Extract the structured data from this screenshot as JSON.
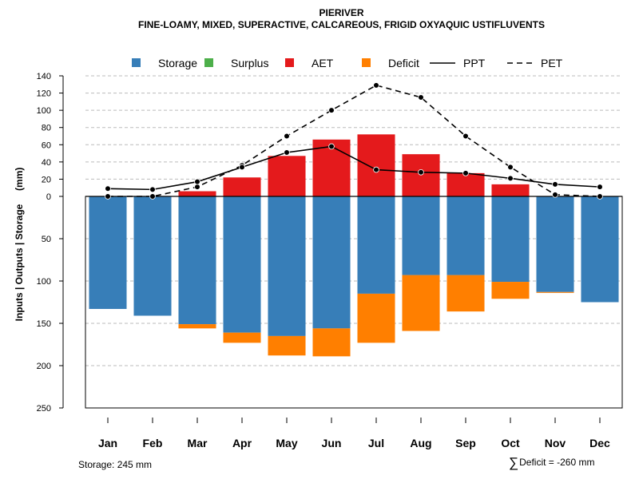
{
  "header": {
    "title": "PIERIVER",
    "subtitle": "FINE-LOAMY, MIXED, SUPERACTIVE, CALCAREOUS, FRIGID OXYAQUIC USTIFLUVENTS"
  },
  "footer": {
    "storage_text": "Storage: 245 mm",
    "deficit_symbol": "∑",
    "deficit_text": "Deficit = -260 mm"
  },
  "colors": {
    "storage": "#377EB8",
    "surplus": "#4DAF4A",
    "aet": "#E41A1C",
    "deficit": "#FF7F00",
    "grid": "#bbbbbb"
  },
  "chart_data": {
    "type": "bar",
    "title": "PIERIVER",
    "subtitle": "FINE-LOAMY, MIXED, SUPERACTIVE, CALCAREOUS, FRIGID OXYAQUIC USTIFLUVENTS",
    "ylabel": "Inputs | Outputs | Storage     (mm)",
    "xlabel": "",
    "categories": [
      "Jan",
      "Feb",
      "Mar",
      "Apr",
      "May",
      "Jun",
      "Jul",
      "Aug",
      "Sep",
      "Oct",
      "Nov",
      "Dec"
    ],
    "upper_axis": {
      "range": [
        0,
        140
      ],
      "ticks": [
        "0",
        "20",
        "40",
        "60",
        "80",
        "100",
        "120",
        "140"
      ]
    },
    "lower_axis": {
      "range": [
        0,
        250
      ],
      "ticks": [
        "50",
        "100",
        "150",
        "200",
        "250"
      ],
      "direction": "down"
    },
    "legend": {
      "placement": "top",
      "items": [
        {
          "label": "Storage",
          "kind": "box",
          "color_key": "storage"
        },
        {
          "label": "Surplus",
          "kind": "box",
          "color_key": "surplus"
        },
        {
          "label": "AET",
          "kind": "box",
          "color_key": "aet"
        },
        {
          "label": "Deficit",
          "kind": "box",
          "color_key": "deficit"
        },
        {
          "label": "PPT",
          "kind": "solid"
        },
        {
          "label": "PET",
          "kind": "dashed"
        }
      ]
    },
    "series": [
      {
        "name": "AET",
        "values": [
          0,
          0,
          6,
          22,
          47,
          66,
          72,
          49,
          27,
          14,
          0,
          0
        ]
      },
      {
        "name": "Surplus",
        "values": [
          0,
          0,
          0,
          0,
          0,
          0,
          0,
          0,
          0,
          0,
          0,
          0
        ]
      },
      {
        "name": "Storage",
        "values": [
          133,
          141,
          151,
          161,
          165,
          156,
          115,
          93,
          93,
          101,
          113,
          125
        ]
      },
      {
        "name": "Deficit",
        "values": [
          0,
          0,
          5,
          12,
          23,
          33,
          58,
          66,
          43,
          20,
          1,
          0
        ]
      },
      {
        "name": "PPT",
        "values": [
          9,
          8,
          17,
          34,
          51,
          58,
          31,
          28,
          27,
          21,
          14,
          11
        ]
      },
      {
        "name": "PET",
        "values": [
          0,
          0,
          11,
          36,
          70,
          100,
          129,
          115,
          70,
          34,
          2,
          0
        ]
      }
    ]
  }
}
